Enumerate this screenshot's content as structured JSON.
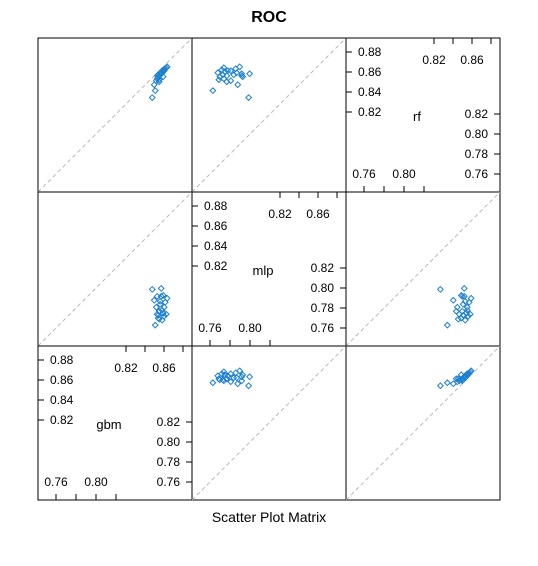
{
  "chart_data": {
    "type": "scatter",
    "title": "ROC",
    "xlabel": "Scatter Plot Matrix",
    "variables": [
      "gbm",
      "mlp",
      "rf"
    ],
    "range": [
      0.74,
      0.895
    ],
    "diag_ticks": {
      "gbm": {
        "upper": [
          "0.82",
          "0.86"
        ],
        "right": [
          "0.88",
          "0.86",
          "0.84",
          "0.82"
        ],
        "left": [
          "0.82",
          "0.80",
          "0.78",
          "0.76"
        ],
        "lower": [
          "0.76",
          "0.80"
        ]
      },
      "mlp": {
        "upper": [
          "0.82",
          "0.86"
        ],
        "right": [
          "0.88",
          "0.86",
          "0.84",
          "0.82"
        ],
        "left": [
          "0.82",
          "0.80",
          "0.78",
          "0.76"
        ],
        "lower": [
          "0.76",
          "0.80"
        ]
      },
      "rf": {
        "upper": [
          "0.82",
          "0.86"
        ],
        "right": [
          "0.88",
          "0.86",
          "0.84",
          "0.82"
        ],
        "left": [
          "0.82",
          "0.80",
          "0.78",
          "0.76"
        ],
        "lower": [
          "0.76",
          "0.80"
        ]
      }
    },
    "series": [
      {
        "values": {
          "gbm": [
            0.855,
            0.857,
            0.859,
            0.86,
            0.861,
            0.862,
            0.863,
            0.864,
            0.865,
            0.866,
            0.867,
            0.868,
            0.87,
            0.858,
            0.862,
            0.866,
            0.861,
            0.863,
            0.865,
            0.869,
            0.864,
            0.86,
            0.867,
            0.862
          ],
          "mlp": [
            0.797,
            0.786,
            0.779,
            0.772,
            0.768,
            0.775,
            0.782,
            0.79,
            0.766,
            0.773,
            0.77,
            0.784,
            0.788,
            0.761,
            0.775,
            0.791,
            0.771,
            0.785,
            0.776,
            0.772,
            0.798,
            0.79,
            0.779,
            0.767
          ],
          "rf": [
            0.835,
            0.848,
            0.852,
            0.854,
            0.856,
            0.857,
            0.858,
            0.859,
            0.86,
            0.861,
            0.863,
            0.864,
            0.866,
            0.842,
            0.851,
            0.856,
            0.858,
            0.86,
            0.862,
            0.865,
            0.859,
            0.857,
            0.862,
            0.853
          ]
        }
      }
    ],
    "marker": "open-diamond",
    "point_color": "#1a7fd0",
    "reference_line": "y = x",
    "reference_line_color": "#b8b8b8",
    "frame_color": "#000000",
    "grid": false
  }
}
